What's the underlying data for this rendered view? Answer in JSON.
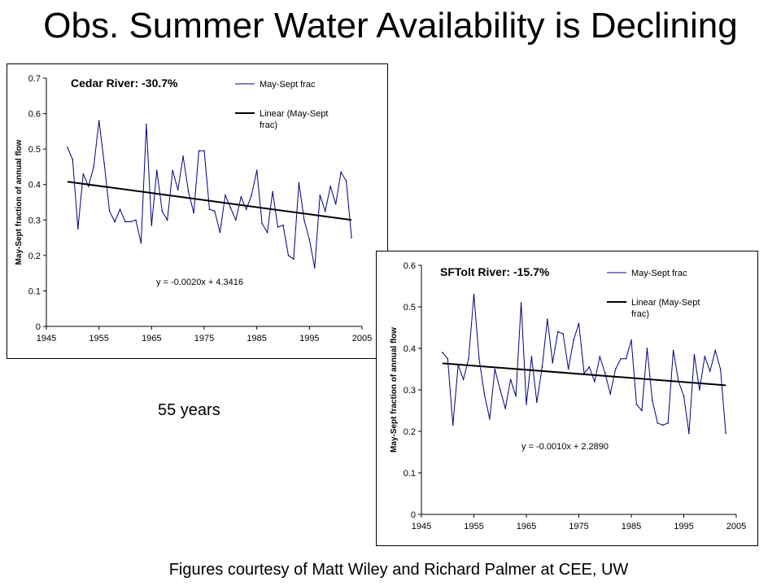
{
  "slide": {
    "title": "Obs. Summer Water Availability is Declining",
    "years_note": "55 years",
    "credit": "Figures courtesy of Matt Wiley and Richard Palmer at CEE, UW"
  },
  "colors": {
    "series": "#000080",
    "trend": "#000000"
  },
  "chart_data": [
    {
      "type": "line",
      "title": "Cedar River: -30.7%",
      "xlabel": "",
      "ylabel": "May-Sept fraction of annual flow",
      "xlim": [
        1945,
        2005
      ],
      "ylim": [
        0,
        0.7
      ],
      "x_ticks": [
        "1945",
        "1955",
        "1965",
        "1975",
        "1985",
        "1995",
        "2005"
      ],
      "y_ticks": [
        "0",
        "0.1",
        "0.2",
        "0.3",
        "0.4",
        "0.5",
        "0.6",
        "0.7"
      ],
      "grid": false,
      "legend_position": "top-right",
      "equation": "y = -0.0020x + 4.3416",
      "series": [
        {
          "name": "May-Sept frac",
          "x": [
            1949,
            1950,
            1951,
            1952,
            1953,
            1954,
            1955,
            1956,
            1957,
            1958,
            1959,
            1960,
            1961,
            1962,
            1963,
            1964,
            1965,
            1966,
            1967,
            1968,
            1969,
            1970,
            1971,
            1972,
            1973,
            1974,
            1975,
            1976,
            1977,
            1978,
            1979,
            1980,
            1981,
            1982,
            1983,
            1984,
            1985,
            1986,
            1987,
            1988,
            1989,
            1990,
            1991,
            1992,
            1993,
            1994,
            1995,
            1996,
            1997,
            1998,
            1999,
            2000,
            2001,
            2002,
            2003
          ],
          "y": [
            0.505,
            0.47,
            0.275,
            0.43,
            0.395,
            0.45,
            0.58,
            0.46,
            0.325,
            0.295,
            0.33,
            0.295,
            0.295,
            0.3,
            0.235,
            0.57,
            0.285,
            0.44,
            0.325,
            0.3,
            0.44,
            0.385,
            0.48,
            0.38,
            0.32,
            0.495,
            0.495,
            0.33,
            0.325,
            0.265,
            0.37,
            0.335,
            0.3,
            0.365,
            0.33,
            0.37,
            0.44,
            0.29,
            0.265,
            0.38,
            0.28,
            0.285,
            0.2,
            0.19,
            0.405,
            0.3,
            0.245,
            0.165,
            0.37,
            0.325,
            0.395,
            0.345,
            0.435,
            0.41,
            0.25
          ]
        },
        {
          "name": "Linear (May-Sept frac)",
          "x": [
            1949,
            2003
          ],
          "y": [
            0.408,
            0.3
          ]
        }
      ]
    },
    {
      "type": "line",
      "title": "SFTolt River: -15.7%",
      "xlabel": "",
      "ylabel": "May-Sept fraction of annual flow",
      "xlim": [
        1945,
        2005
      ],
      "ylim": [
        0,
        0.6
      ],
      "x_ticks": [
        "1945",
        "1955",
        "1965",
        "1975",
        "1985",
        "1995",
        "2005"
      ],
      "y_ticks": [
        "0",
        "0.1",
        "0.2",
        "0.3",
        "0.4",
        "0.5",
        "0.6"
      ],
      "grid": false,
      "legend_position": "top-right",
      "equation": "y = -0.0010x + 2.2890",
      "series": [
        {
          "name": "May-Sept frac",
          "x": [
            1949,
            1950,
            1951,
            1952,
            1953,
            1954,
            1955,
            1956,
            1957,
            1958,
            1959,
            1960,
            1961,
            1962,
            1963,
            1964,
            1965,
            1966,
            1967,
            1968,
            1969,
            1970,
            1971,
            1972,
            1973,
            1974,
            1975,
            1976,
            1977,
            1978,
            1979,
            1980,
            1981,
            1982,
            1983,
            1984,
            1985,
            1986,
            1987,
            1988,
            1989,
            1990,
            1991,
            1992,
            1993,
            1994,
            1995,
            1996,
            1997,
            1998,
            1999,
            2000,
            2001,
            2002,
            2003
          ],
          "y": [
            0.39,
            0.375,
            0.215,
            0.36,
            0.325,
            0.375,
            0.53,
            0.375,
            0.29,
            0.23,
            0.35,
            0.3,
            0.255,
            0.325,
            0.285,
            0.51,
            0.265,
            0.38,
            0.27,
            0.355,
            0.47,
            0.365,
            0.44,
            0.435,
            0.35,
            0.42,
            0.46,
            0.34,
            0.355,
            0.32,
            0.38,
            0.34,
            0.29,
            0.35,
            0.375,
            0.375,
            0.42,
            0.265,
            0.25,
            0.4,
            0.275,
            0.22,
            0.215,
            0.22,
            0.395,
            0.32,
            0.285,
            0.195,
            0.385,
            0.3,
            0.38,
            0.345,
            0.395,
            0.35,
            0.195
          ]
        },
        {
          "name": "Linear (May-Sept frac)",
          "x": [
            1949,
            2003
          ],
          "y": [
            0.364,
            0.311
          ]
        }
      ]
    }
  ]
}
